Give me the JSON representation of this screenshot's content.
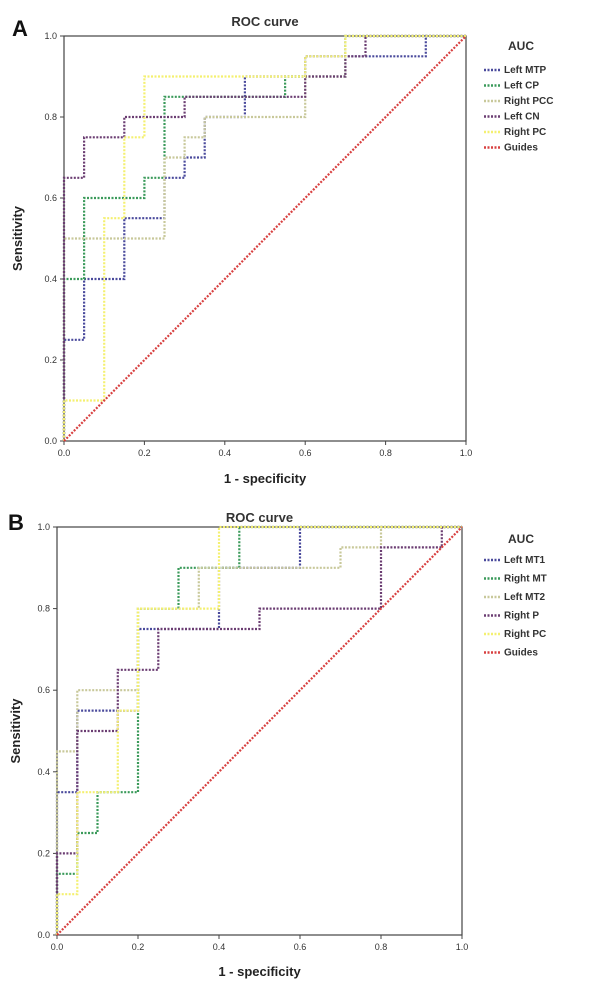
{
  "chart_data": [
    {
      "panel": "A",
      "type": "line",
      "title": "ROC  curve",
      "xlabel": "1 - specificity",
      "ylabel": "Sensitivity",
      "xlim": [
        0,
        1
      ],
      "ylim": [
        0,
        1
      ],
      "xticks": [
        "0.0",
        "0.2",
        "0.4",
        "0.6",
        "0.8",
        "1.0"
      ],
      "yticks": [
        "0.0",
        "0.2",
        "0.4",
        "0.6",
        "0.8",
        "1.0"
      ],
      "legend_title": "AUC",
      "legend_position": "right",
      "grid": false,
      "series": [
        {
          "name": "Left MTP",
          "color": "#4a4a9c",
          "x": [
            0,
            0,
            0.05,
            0.05,
            0.15,
            0.15,
            0.25,
            0.25,
            0.3,
            0.3,
            0.35,
            0.35,
            0.45,
            0.45,
            0.6,
            0.6,
            0.75,
            0.75,
            0.9,
            0.9,
            1
          ],
          "y": [
            0,
            0.25,
            0.25,
            0.4,
            0.4,
            0.55,
            0.55,
            0.65,
            0.65,
            0.7,
            0.7,
            0.8,
            0.8,
            0.9,
            0.9,
            0.95,
            0.95,
            0.95,
            0.95,
            1,
            1
          ]
        },
        {
          "name": "Left CP",
          "color": "#3a9a5a",
          "x": [
            0,
            0,
            0.05,
            0.05,
            0.2,
            0.2,
            0.25,
            0.25,
            0.5,
            0.5,
            0.55,
            0.55,
            0.7,
            0.7,
            1
          ],
          "y": [
            0,
            0.4,
            0.4,
            0.6,
            0.6,
            0.65,
            0.65,
            0.85,
            0.85,
            0.85,
            0.85,
            0.9,
            0.9,
            1,
            1
          ]
        },
        {
          "name": "Right PCC",
          "color": "#c8c89a",
          "x": [
            0,
            0,
            0.25,
            0.25,
            0.3,
            0.3,
            0.35,
            0.35,
            0.6,
            0.6,
            0.7,
            0.7,
            1
          ],
          "y": [
            0,
            0.5,
            0.5,
            0.7,
            0.7,
            0.75,
            0.75,
            0.8,
            0.8,
            0.9,
            0.9,
            1,
            1
          ]
        },
        {
          "name": "Left CN",
          "color": "#6b3d72",
          "x": [
            0,
            0,
            0.05,
            0.05,
            0.15,
            0.15,
            0.3,
            0.3,
            0.6,
            0.6,
            0.7,
            0.7,
            0.75,
            0.75,
            1
          ],
          "y": [
            0,
            0.65,
            0.65,
            0.75,
            0.75,
            0.8,
            0.8,
            0.85,
            0.85,
            0.9,
            0.9,
            0.95,
            0.95,
            1,
            1
          ]
        },
        {
          "name": "Right PC",
          "color": "#f4f070",
          "x": [
            0,
            0,
            0.1,
            0.1,
            0.15,
            0.15,
            0.2,
            0.2,
            0.3,
            0.3,
            0.6,
            0.6,
            0.7,
            0.7,
            1
          ],
          "y": [
            0,
            0.1,
            0.1,
            0.55,
            0.55,
            0.75,
            0.75,
            0.9,
            0.9,
            0.9,
            0.9,
            0.95,
            0.95,
            1,
            1
          ]
        },
        {
          "name": "Guides",
          "color": "#d84040",
          "x": [
            0,
            1
          ],
          "y": [
            0,
            1
          ]
        }
      ]
    },
    {
      "panel": "B",
      "type": "line",
      "title": "ROC curve",
      "xlabel": "1 - specificity",
      "ylabel": "Sensitivity",
      "xlim": [
        0,
        1
      ],
      "ylim": [
        0,
        1
      ],
      "xticks": [
        "0.0",
        "0.2",
        "0.4",
        "0.6",
        "0.8",
        "1.0"
      ],
      "yticks": [
        "0.0",
        "0.2",
        "0.4",
        "0.6",
        "0.8",
        "1.0"
      ],
      "legend_title": "AUC",
      "legend_position": "right",
      "grid": false,
      "series": [
        {
          "name": "Left MT1",
          "color": "#4a4a9c",
          "x": [
            0,
            0,
            0.05,
            0.05,
            0.2,
            0.2,
            0.4,
            0.4,
            0.6,
            0.6,
            1
          ],
          "y": [
            0,
            0.35,
            0.35,
            0.55,
            0.55,
            0.75,
            0.75,
            0.9,
            0.9,
            1,
            1
          ]
        },
        {
          "name": "Right MT",
          "color": "#3a9a5a",
          "x": [
            0,
            0,
            0.05,
            0.05,
            0.1,
            0.1,
            0.2,
            0.2,
            0.3,
            0.3,
            0.45,
            0.45,
            1
          ],
          "y": [
            0,
            0.15,
            0.15,
            0.25,
            0.25,
            0.35,
            0.35,
            0.8,
            0.8,
            0.9,
            0.9,
            1,
            1
          ]
        },
        {
          "name": "Left MT2",
          "color": "#c8c89a",
          "x": [
            0,
            0,
            0.05,
            0.05,
            0.2,
            0.2,
            0.35,
            0.35,
            0.7,
            0.7,
            0.8,
            0.8,
            1
          ],
          "y": [
            0,
            0.45,
            0.45,
            0.6,
            0.6,
            0.8,
            0.8,
            0.9,
            0.9,
            0.95,
            0.95,
            1,
            1
          ]
        },
        {
          "name": "Right P",
          "color": "#6b3d72",
          "x": [
            0,
            0,
            0.05,
            0.05,
            0.15,
            0.15,
            0.25,
            0.25,
            0.5,
            0.5,
            0.8,
            0.8,
            0.95,
            0.95,
            1
          ],
          "y": [
            0,
            0.2,
            0.2,
            0.5,
            0.5,
            0.65,
            0.65,
            0.75,
            0.75,
            0.8,
            0.8,
            0.95,
            0.95,
            1,
            1
          ]
        },
        {
          "name": "Right PC",
          "color": "#f4f070",
          "x": [
            0,
            0,
            0.05,
            0.05,
            0.15,
            0.15,
            0.2,
            0.2,
            0.4,
            0.4,
            1
          ],
          "y": [
            0,
            0.1,
            0.1,
            0.35,
            0.35,
            0.55,
            0.55,
            0.8,
            0.8,
            1,
            1
          ]
        },
        {
          "name": "Guides",
          "color": "#d84040",
          "x": [
            0,
            1
          ],
          "y": [
            0,
            1
          ]
        }
      ]
    }
  ]
}
